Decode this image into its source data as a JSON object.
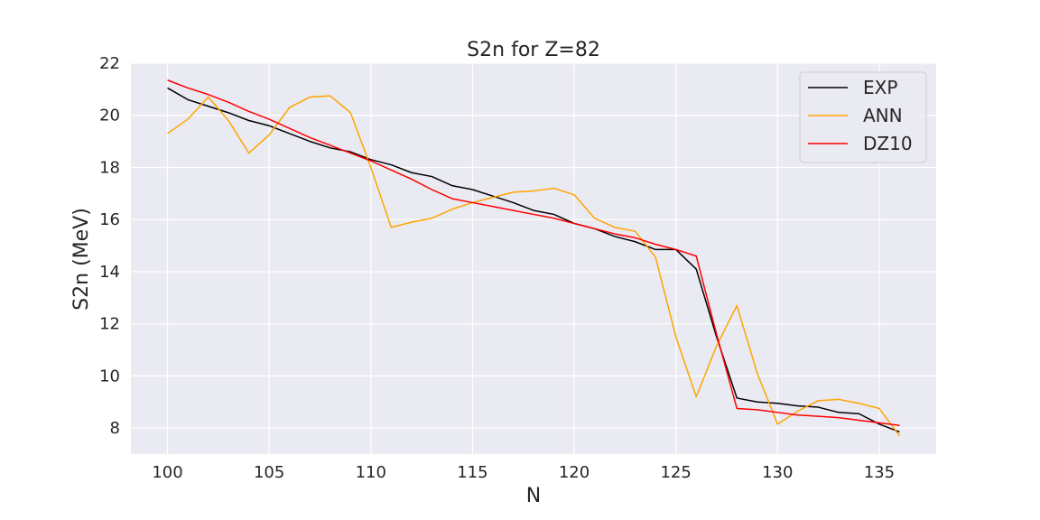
{
  "chart_data": {
    "type": "line",
    "title": "S2n for Z=82",
    "xlabel": "N",
    "ylabel": "S2n (MeV)",
    "xlim": [
      98.2,
      137.8
    ],
    "ylim": [
      7,
      22
    ],
    "xticks": [
      100,
      105,
      110,
      115,
      120,
      125,
      130,
      135
    ],
    "yticks": [
      8,
      10,
      12,
      14,
      16,
      18,
      20,
      22
    ],
    "grid": true,
    "legend_position": "upper right",
    "x": [
      100,
      101,
      102,
      103,
      104,
      105,
      106,
      107,
      108,
      109,
      110,
      111,
      112,
      113,
      114,
      115,
      116,
      117,
      118,
      119,
      120,
      121,
      122,
      123,
      124,
      125,
      126,
      127,
      128,
      129,
      130,
      131,
      132,
      133,
      134,
      135,
      136
    ],
    "series": [
      {
        "name": "EXP",
        "color": "#000000",
        "values": [
          21.05,
          20.6,
          20.35,
          20.1,
          19.8,
          19.6,
          19.3,
          19.0,
          18.75,
          18.6,
          18.3,
          18.1,
          17.8,
          17.65,
          17.3,
          17.15,
          16.9,
          16.65,
          16.35,
          16.2,
          15.85,
          15.65,
          15.35,
          15.15,
          14.85,
          14.85,
          14.1,
          11.5,
          9.15,
          9.0,
          8.95,
          8.85,
          8.8,
          8.6,
          8.55,
          8.15,
          7.85
        ]
      },
      {
        "name": "ANN",
        "color": "#ffa500",
        "values": [
          19.3,
          19.85,
          20.7,
          19.8,
          18.55,
          19.25,
          20.3,
          20.7,
          20.75,
          20.1,
          18.0,
          15.7,
          15.9,
          16.05,
          16.4,
          16.65,
          16.85,
          17.05,
          17.1,
          17.2,
          16.95,
          16.05,
          15.7,
          15.55,
          14.55,
          11.5,
          9.2,
          11.15,
          12.7,
          10.1,
          8.15,
          8.65,
          9.05,
          9.1,
          8.95,
          8.75,
          7.7
        ]
      },
      {
        "name": "DZ10",
        "color": "#ff0000",
        "values": [
          21.35,
          21.05,
          20.8,
          20.5,
          20.15,
          19.85,
          19.5,
          19.15,
          18.85,
          18.55,
          18.25,
          17.9,
          17.55,
          17.15,
          16.8,
          16.65,
          16.5,
          16.35,
          16.2,
          16.05,
          15.85,
          15.65,
          15.45,
          15.3,
          15.05,
          14.85,
          14.6,
          11.6,
          8.75,
          8.7,
          8.6,
          8.5,
          8.45,
          8.4,
          8.3,
          8.2,
          8.1
        ]
      }
    ]
  }
}
